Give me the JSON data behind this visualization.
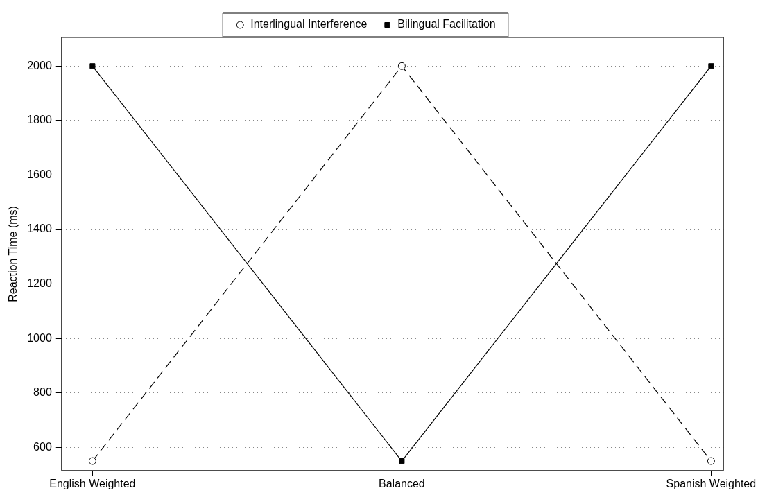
{
  "chart_data": {
    "type": "line",
    "ylabel": "Reaction Time (ms)",
    "categories": [
      "English Weighted",
      "Balanced",
      "Spanish Weighted"
    ],
    "series": [
      {
        "name": "Interlingual Interference",
        "color": "#000000",
        "values": [
          550,
          2000,
          550
        ],
        "marker": "circle",
        "line_style": "dashed"
      },
      {
        "name": "Bilingual Facilitation",
        "color": "#000000",
        "values": [
          2000,
          550,
          2000
        ],
        "marker": "square",
        "line_style": "solid"
      }
    ],
    "ylim": [
      515,
      2105
    ],
    "yticks": [
      600,
      800,
      1000,
      1200,
      1400,
      1600,
      1800,
      2000
    ],
    "grid": "y",
    "legend": "top"
  }
}
